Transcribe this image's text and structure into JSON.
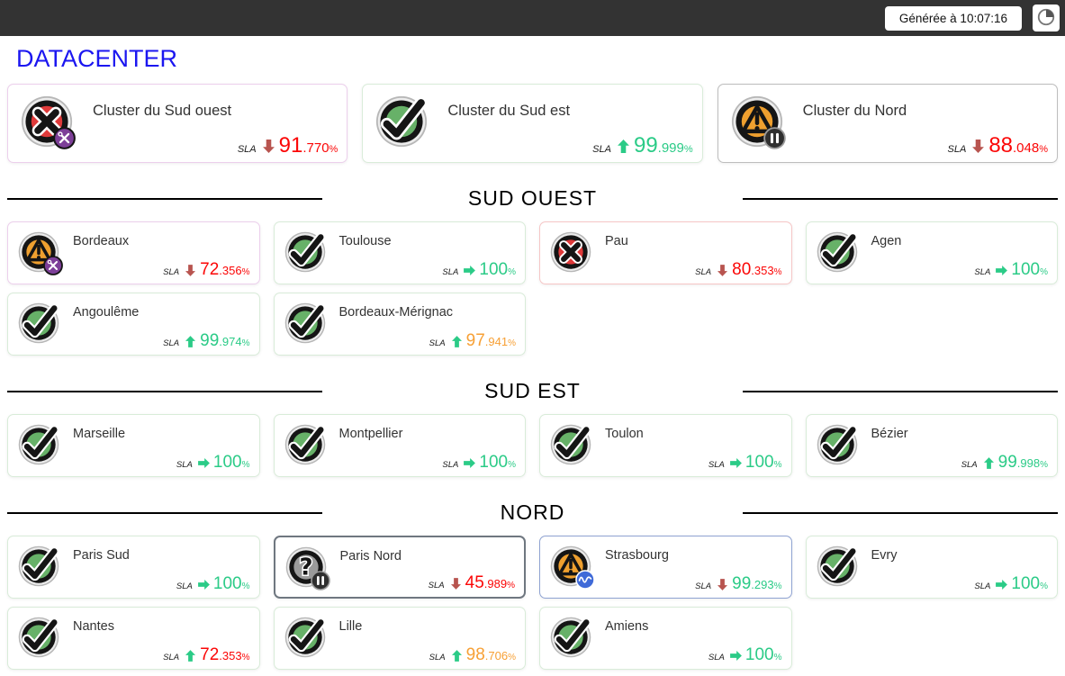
{
  "topbar": {
    "generated_label": "Générée à 10:07:16"
  },
  "page": {
    "title": "DATACENTER"
  },
  "labels": {
    "sla": "SLA",
    "percent": "%"
  },
  "colors": {
    "accent_blue": "#1b16f0",
    "ok_green": "#67b168",
    "critical_red": "#df3a3a",
    "warning_orange": "#efa02f",
    "unknown_gray": "#9b9b9b",
    "value_green": "#2bcb87",
    "value_red": "#fb0606",
    "value_orange": "#f7a035",
    "arrow_down_red": "#b8544f"
  },
  "clusters": [
    {
      "name": "Cluster du Sud ouest",
      "status": "critical",
      "badge": "tools",
      "card_style": "pink",
      "sla": {
        "trend": "down",
        "trend_color": "red",
        "value": "91.770",
        "value_color": "red"
      }
    },
    {
      "name": "Cluster du Sud est",
      "status": "ok",
      "badge": null,
      "card_style": "green",
      "sla": {
        "trend": "up",
        "trend_color": "green",
        "value": "99.999",
        "value_color": "green"
      }
    },
    {
      "name": "Cluster du Nord",
      "status": "warning",
      "badge": "pause",
      "card_style": "gray",
      "sla": {
        "trend": "down",
        "trend_color": "red",
        "value": "88.048",
        "value_color": "red"
      }
    }
  ],
  "sections": [
    {
      "title": "SUD OUEST",
      "items": [
        {
          "name": "Bordeaux",
          "status": "warning",
          "badge": "tools",
          "card_style": "pink",
          "sla": {
            "trend": "down",
            "trend_color": "red",
            "value": "72.356",
            "value_color": "red"
          }
        },
        {
          "name": "Toulouse",
          "status": "ok",
          "badge": null,
          "card_style": "green",
          "sla": {
            "trend": "right",
            "trend_color": "green",
            "value": "100",
            "value_color": "green"
          }
        },
        {
          "name": "Pau",
          "status": "critical",
          "badge": null,
          "card_style": "red",
          "sla": {
            "trend": "down",
            "trend_color": "red",
            "value": "80.353",
            "value_color": "red"
          }
        },
        {
          "name": "Agen",
          "status": "ok",
          "badge": null,
          "card_style": "green",
          "sla": {
            "trend": "right",
            "trend_color": "green",
            "value": "100",
            "value_color": "green"
          }
        },
        {
          "name": "Angoulême",
          "status": "ok",
          "badge": null,
          "card_style": "green",
          "sla": {
            "trend": "up",
            "trend_color": "green",
            "value": "99.974",
            "value_color": "green"
          }
        },
        {
          "name": "Bordeaux-Mérignac",
          "status": "ok",
          "badge": null,
          "card_style": "green",
          "sla": {
            "trend": "up",
            "trend_color": "green",
            "value": "97.941",
            "value_color": "orange"
          }
        }
      ]
    },
    {
      "title": "SUD EST",
      "items": [
        {
          "name": "Marseille",
          "status": "ok",
          "badge": null,
          "card_style": "green",
          "sla": {
            "trend": "right",
            "trend_color": "green",
            "value": "100",
            "value_color": "green"
          }
        },
        {
          "name": "Montpellier",
          "status": "ok",
          "badge": null,
          "card_style": "green",
          "sla": {
            "trend": "right",
            "trend_color": "green",
            "value": "100",
            "value_color": "green"
          }
        },
        {
          "name": "Toulon",
          "status": "ok",
          "badge": null,
          "card_style": "green",
          "sla": {
            "trend": "right",
            "trend_color": "green",
            "value": "100",
            "value_color": "green"
          }
        },
        {
          "name": "Bézier",
          "status": "ok",
          "badge": null,
          "card_style": "green",
          "sla": {
            "trend": "up",
            "trend_color": "green",
            "value": "99.998",
            "value_color": "green"
          }
        }
      ]
    },
    {
      "title": "NORD",
      "items": [
        {
          "name": "Paris Sud",
          "status": "ok",
          "badge": null,
          "card_style": "green",
          "sla": {
            "trend": "right",
            "trend_color": "green",
            "value": "100",
            "value_color": "green"
          }
        },
        {
          "name": "Paris Nord",
          "status": "unknown",
          "badge": "pause",
          "card_style": "dark",
          "sla": {
            "trend": "down",
            "trend_color": "red",
            "value": "45.989",
            "value_color": "red"
          }
        },
        {
          "name": "Strasbourg",
          "status": "warning",
          "badge": "flap",
          "card_style": "blue",
          "sla": {
            "trend": "down",
            "trend_color": "red",
            "value": "99.293",
            "value_color": "green"
          }
        },
        {
          "name": "Evry",
          "status": "ok",
          "badge": null,
          "card_style": "green",
          "sla": {
            "trend": "right",
            "trend_color": "green",
            "value": "100",
            "value_color": "green"
          }
        },
        {
          "name": "Nantes",
          "status": "ok",
          "badge": null,
          "card_style": "green",
          "sla": {
            "trend": "up",
            "trend_color": "green",
            "value": "72.353",
            "value_color": "red"
          }
        },
        {
          "name": "Lille",
          "status": "ok",
          "badge": null,
          "card_style": "green",
          "sla": {
            "trend": "up",
            "trend_color": "green",
            "value": "98.706",
            "value_color": "orange"
          }
        },
        {
          "name": "Amiens",
          "status": "ok",
          "badge": null,
          "card_style": "green",
          "sla": {
            "trend": "right",
            "trend_color": "green",
            "value": "100",
            "value_color": "green"
          }
        }
      ]
    }
  ]
}
